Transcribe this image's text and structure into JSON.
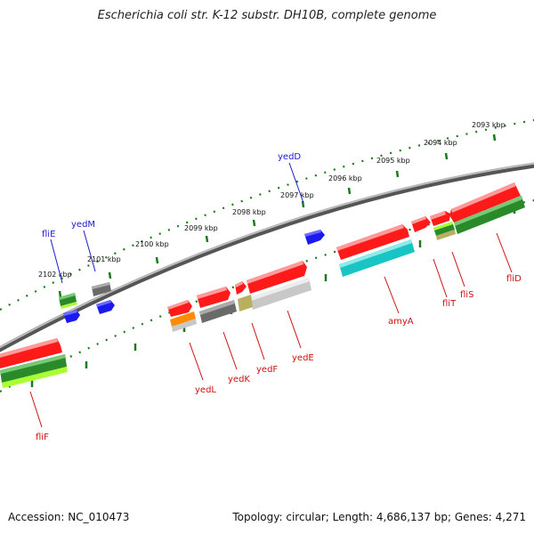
{
  "title": "Escherichia coli str. K-12 substr. DH10B, complete genome",
  "footer": {
    "accession": "Accession: NC_010473",
    "summary": "Topology: circular; Length: 4,686,137 bp; Genes: 4,271"
  },
  "colors": {
    "backbone": "#808080",
    "plus_strand_ticks": "#1b7a1b",
    "minus_strand_ticks": "#1b7a1b",
    "plus_label": "#1a1acc",
    "minus_label": "#cc1111",
    "gene_red": "#ff1a1a",
    "gene_green": "#2a8a2a",
    "gene_cyan": "#19c4c4",
    "gene_gray": "#6a6a6a",
    "gene_light_gray": "#c8c8c8",
    "gene_olive": "#b8b060",
    "gene_blue": "#1a1aee",
    "gene_orange": "#ff8c00",
    "gene_lime": "#aaff33"
  },
  "scale": {
    "unit": "kbp",
    "labels": [
      "2093 kbp",
      "2094 kbp",
      "2095 kbp",
      "2096 kbp",
      "2097 kbp",
      "2098 kbp",
      "2099 kbp",
      "2100 kbp",
      "2101 kbp",
      "2102 kbp"
    ]
  },
  "genes": {
    "plus": [
      "yedD",
      "yedM",
      "fliE"
    ],
    "minus": [
      "fliD",
      "fliS",
      "fliT",
      "amyA",
      "yedE",
      "yedF",
      "yedK",
      "yedL",
      "fliF"
    ]
  }
}
